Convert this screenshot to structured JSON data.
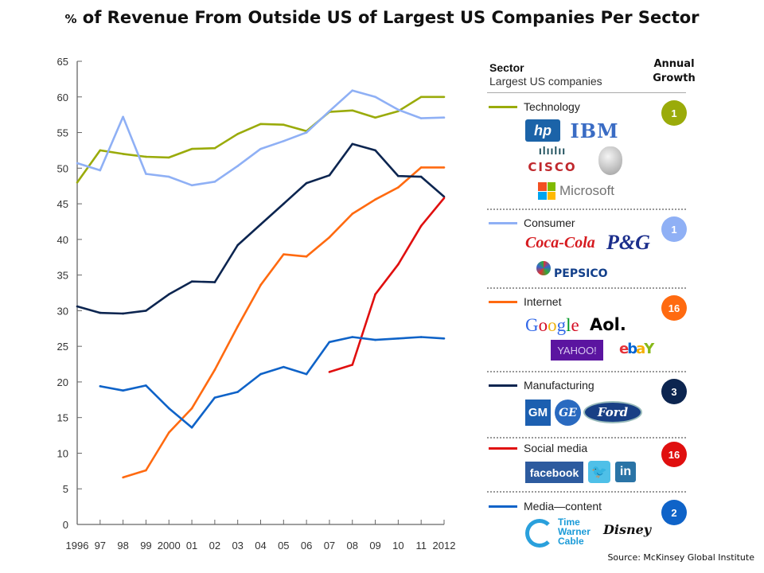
{
  "title": {
    "prefix": "%",
    "text": " of Revenue From Outside US of Largest US Companies Per Sector"
  },
  "legend": {
    "header_sector": "Sector",
    "header_subtitle": "Largest US companies",
    "header_growth": "Annual Growth",
    "sectors": [
      {
        "name": "Technology",
        "color": "#9aab0a",
        "growth": "1",
        "logos": [
          "hp",
          "IBM",
          "CISCO",
          "Apple",
          "Microsoft"
        ]
      },
      {
        "name": "Consumer",
        "color": "#8fb0f5",
        "growth": "1",
        "logos": [
          "Coca-Cola",
          "P&G",
          "PEPSICO"
        ]
      },
      {
        "name": "Internet",
        "color": "#ff6a10",
        "growth": "16",
        "logos": [
          "Google",
          "Aol.",
          "YAHOO!",
          "ebY"
        ]
      },
      {
        "name": "Manufacturing",
        "color": "#0c2550",
        "growth": "3",
        "logos": [
          "GM",
          "GE",
          "Ford"
        ]
      },
      {
        "name": "Social media",
        "color": "#e00f0f",
        "growth": "16",
        "logos": [
          "facebook",
          "Twitter",
          "in"
        ]
      },
      {
        "name": "Media—content",
        "color": "#0f63c8",
        "growth": "2",
        "logos": [
          "Time Warner Cable",
          "Disney"
        ]
      }
    ]
  },
  "source": "Source: McKinsey Global Institute",
  "chart_data": {
    "type": "line",
    "title": "% of Revenue From Outside US of Largest US Companies Per Sector",
    "x": [
      1996,
      1997,
      1998,
      1999,
      2000,
      2001,
      2002,
      2003,
      2004,
      2005,
      2006,
      2007,
      2008,
      2009,
      2010,
      2011,
      2012
    ],
    "x_tick_labels": [
      "1996",
      "97",
      "98",
      "99",
      "2000",
      "01",
      "02",
      "03",
      "04",
      "05",
      "06",
      "07",
      "08",
      "09",
      "10",
      "11",
      "2012"
    ],
    "y_ticks": [
      0,
      5,
      10,
      15,
      20,
      25,
      30,
      35,
      40,
      45,
      50,
      55,
      60,
      65
    ],
    "ylim": [
      0,
      65
    ],
    "grid": false,
    "legend_placement": "right",
    "series": [
      {
        "name": "Technology",
        "color": "#9aab0a",
        "values": [
          48.0,
          52.5,
          52.0,
          51.6,
          51.5,
          52.7,
          52.8,
          54.8,
          56.2,
          56.1,
          55.2,
          57.9,
          58.1,
          57.1,
          58.0,
          60.0,
          60.0
        ]
      },
      {
        "name": "Consumer",
        "color": "#8fb0f5",
        "values": [
          50.7,
          49.7,
          57.2,
          49.2,
          48.8,
          47.6,
          48.1,
          50.3,
          52.7,
          53.8,
          55.0,
          58.0,
          60.9,
          60.0,
          58.2,
          57.0,
          57.1
        ]
      },
      {
        "name": "Internet",
        "color": "#ff6a10",
        "values": [
          null,
          null,
          6.6,
          7.6,
          12.9,
          16.3,
          21.7,
          27.8,
          33.6,
          37.9,
          37.6,
          40.3,
          43.6,
          45.6,
          47.3,
          50.1,
          50.1
        ]
      },
      {
        "name": "Manufacturing",
        "color": "#0c2550",
        "values": [
          30.6,
          29.7,
          29.6,
          30.0,
          32.3,
          34.1,
          34.0,
          39.2,
          42.1,
          45.0,
          47.9,
          49.0,
          53.4,
          52.5,
          48.9,
          48.8,
          46.0
        ]
      },
      {
        "name": "Social media",
        "color": "#e00f0f",
        "values": [
          null,
          null,
          null,
          null,
          null,
          null,
          null,
          null,
          null,
          null,
          null,
          21.4,
          22.4,
          32.3,
          36.5,
          41.9,
          45.8
        ]
      },
      {
        "name": "Media—content",
        "color": "#0f63c8",
        "values": [
          null,
          19.4,
          18.8,
          19.5,
          16.3,
          13.6,
          17.8,
          18.6,
          21.1,
          22.1,
          21.1,
          25.6,
          26.3,
          25.9,
          26.1,
          26.3,
          26.1
        ]
      }
    ]
  }
}
